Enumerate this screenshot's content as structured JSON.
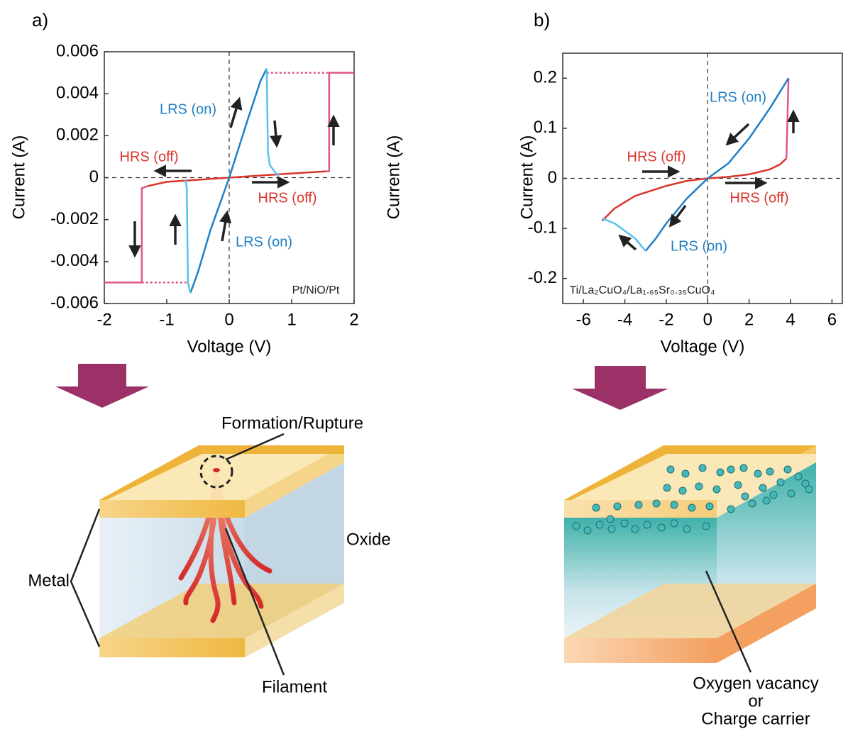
{
  "chart_data": [
    {
      "type": "line",
      "panel_label": "a)",
      "x_label": "Voltage (V)",
      "y_label": "Current (A)",
      "right_label": "Current (A)",
      "xlim": [
        -2,
        2
      ],
      "ylim": [
        -0.006,
        0.006
      ],
      "xticks": [
        -2,
        -1,
        0,
        1,
        2
      ],
      "yticks": [
        -0.006,
        -0.004,
        -0.002,
        0,
        0.002,
        0.004,
        0.006
      ],
      "series": [
        {
          "color": "#d9362b",
          "dash": "solid",
          "x": [
            -1.3,
            -1.0,
            -0.5,
            0,
            0.5,
            1.0,
            1.55
          ],
          "values": [
            -0.0004,
            -0.0002,
            -0.0001,
            0,
            0.0001,
            0.0002,
            0.0003
          ]
        },
        {
          "color": "#e0558a",
          "dash": "solid",
          "x": [
            1.55,
            1.6,
            1.6,
            2.0
          ],
          "values": [
            0.0003,
            0.0003,
            0.005,
            0.005
          ]
        },
        {
          "color": "#e0558a",
          "dash": "solid",
          "x": [
            -1.3,
            -1.4,
            -1.4,
            -2.0
          ],
          "values": [
            -0.0004,
            -0.0005,
            -0.005,
            -0.005
          ]
        },
        {
          "color": "#e0558a",
          "dash": "dotted",
          "x": [
            0.6,
            1.6
          ],
          "values": [
            0.005,
            0.005
          ]
        },
        {
          "color": "#e0558a",
          "dash": "dotted",
          "x": [
            -1.4,
            -0.65
          ],
          "values": [
            -0.005,
            -0.005
          ]
        },
        {
          "color": "#1f7fc6",
          "dash": "solid",
          "x": [
            -0.62,
            -0.5,
            -0.3,
            0,
            0.3,
            0.5,
            0.6
          ],
          "values": [
            -0.0055,
            -0.0045,
            -0.0025,
            0,
            0.0028,
            0.0046,
            0.0052
          ]
        },
        {
          "color": "#56c2ec",
          "dash": "solid",
          "x": [
            0.6,
            0.62,
            0.65,
            0.7,
            0.75,
            0.8
          ],
          "values": [
            0.0052,
            0.0012,
            0.0006,
            0.0004,
            0.0002,
            0.0001
          ]
        },
        {
          "color": "#56c2ec",
          "dash": "solid",
          "x": [
            -0.7,
            -0.68,
            -0.66,
            -0.62
          ],
          "values": [
            -0.0001,
            -0.0005,
            -0.005,
            -0.0055
          ]
        }
      ],
      "annotations": [
        {
          "text": "LRS (on)",
          "color": "#1f7fc6"
        },
        {
          "text": "HRS (off)",
          "color": "#d9362b"
        },
        {
          "text": "HRS (off)",
          "color": "#d9362b"
        },
        {
          "text": "LRS (on)",
          "color": "#1f7fc6"
        },
        {
          "text": "Pt/NiO/Pt",
          "color": "#222222"
        }
      ]
    },
    {
      "type": "line",
      "panel_label": "b)",
      "x_label": "Voltage (V)",
      "y_label": "Current (A)",
      "xlim": [
        -7,
        6.5
      ],
      "ylim": [
        -0.25,
        0.25
      ],
      "xticks": [
        -6,
        -4,
        -2,
        0,
        2,
        4,
        6
      ],
      "yticks": [
        -0.2,
        -0.1,
        0,
        0.1,
        0.2
      ],
      "series": [
        {
          "color": "#d9362b",
          "dash": "solid",
          "x": [
            -5.1,
            -4.5,
            -3.5,
            -2,
            -1,
            0,
            1,
            2,
            3,
            3.5,
            3.8
          ],
          "values": [
            -0.085,
            -0.06,
            -0.035,
            -0.015,
            -0.005,
            0,
            0.003,
            0.008,
            0.018,
            0.028,
            0.04
          ]
        },
        {
          "color": "#e0558a",
          "dash": "solid",
          "x": [
            3.8,
            3.85,
            3.9
          ],
          "values": [
            0.04,
            0.12,
            0.2
          ]
        },
        {
          "color": "#1f7fc6",
          "dash": "solid",
          "x": [
            3.9,
            3,
            2,
            1,
            0,
            -1,
            -2,
            -2.5,
            -3
          ],
          "values": [
            0.2,
            0.14,
            0.08,
            0.03,
            0,
            -0.04,
            -0.09,
            -0.12,
            -0.145
          ]
        },
        {
          "color": "#56c2ec",
          "dash": "solid",
          "x": [
            -3,
            -3.5,
            -4,
            -4.5,
            -5.1
          ],
          "values": [
            -0.145,
            -0.12,
            -0.105,
            -0.09,
            -0.08
          ]
        }
      ],
      "annotations": [
        {
          "text": "LRS (on)",
          "color": "#1f7fc6"
        },
        {
          "text": "HRS (off)",
          "color": "#d9362b"
        },
        {
          "text": "HRS (off)",
          "color": "#d9362b"
        },
        {
          "text": "LRS (on)",
          "color": "#1f7fc6"
        },
        {
          "text": "Ti/La₂CuO₄/La₁.₆₅Sr₀.₃₅CuO₄",
          "color": "#222222"
        }
      ]
    }
  ],
  "diagrams": {
    "filament": {
      "formation": "Formation/Rupture",
      "oxide": "Oxide",
      "metal": "Metal",
      "filament": "Filament"
    },
    "interface": {
      "line1": "Oxygen vacancy",
      "line2": "or",
      "line3": "Charge carrier"
    }
  }
}
